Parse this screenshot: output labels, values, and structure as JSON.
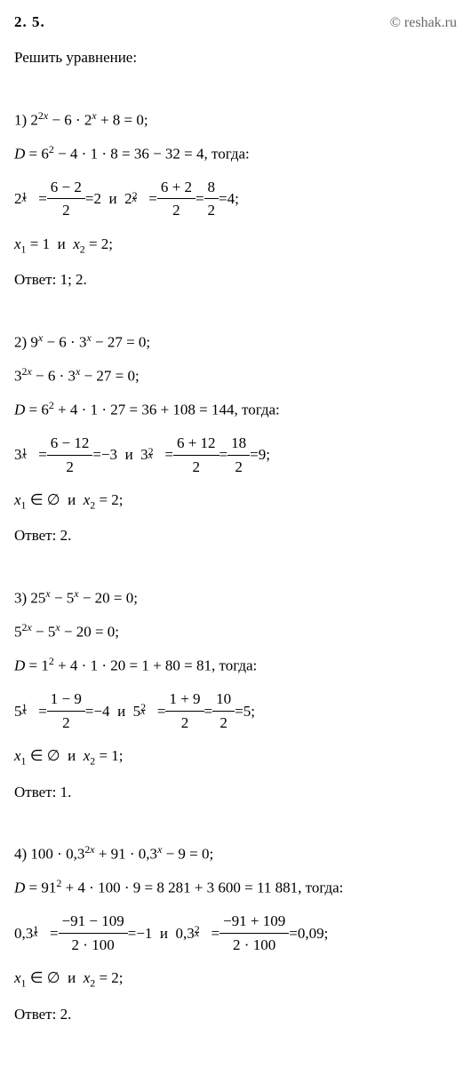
{
  "header": {
    "problem_number": "2. 5.",
    "copyright": "© reshak.ru"
  },
  "task_title": "Решить уравнение:",
  "subproblems": [
    {
      "eq": "1) 2^{2x} − 6 · 2^{x} + 8 = 0;",
      "disc": "D = 6^{2} − 4 · 1 · 8 = 36 − 32 = 4, тогда:",
      "roots_base": "2",
      "root1_num": "6 − 2",
      "root1_den": "2",
      "root1_val": "2",
      "root2_num": "6 + 2",
      "root2_den": "2",
      "root2_mid": "8",
      "root2_midden": "2",
      "root2_val": "4",
      "x_line": "x₁ = 1  и  x₂ = 2;",
      "answer": "Ответ:  1;  2."
    },
    {
      "eq": "2) 9^{x} − 6 · 3^{x} − 27 = 0;",
      "rewrite": "3^{2x} − 6 · 3^{x} − 27 = 0;",
      "disc": "D = 6^{2} + 4 · 1 · 27 = 36 + 108 = 144, тогда:",
      "roots_base": "3",
      "root1_num": "6 − 12",
      "root1_den": "2",
      "root1_val": "−3",
      "root2_num": "6 + 12",
      "root2_den": "2",
      "root2_mid": "18",
      "root2_midden": "2",
      "root2_val": "9",
      "x_line": "x₁ ∈ ∅  и  x₂ = 2;",
      "answer": "Ответ:  2."
    },
    {
      "eq": "3) 25^{x} − 5^{x} − 20 = 0;",
      "rewrite": "5^{2x} − 5^{x} − 20 = 0;",
      "disc": "D = 1^{2} + 4 · 1 · 20 = 1 + 80 = 81, тогда:",
      "roots_base": "5",
      "root1_num": "1 − 9",
      "root1_den": "2",
      "root1_val": "−4",
      "root2_num": "1 + 9",
      "root2_den": "2",
      "root2_mid": "10",
      "root2_midden": "2",
      "root2_val": "5",
      "x_line": "x₁ ∈ ∅  и  x₂ = 1;",
      "answer": "Ответ:  1."
    },
    {
      "eq": "4) 100 · 0,3^{2x} + 91 · 0,3^{x} − 9 = 0;",
      "disc": "D = 91^{2} + 4 · 100 · 9 = 8 281 + 3 600 = 11 881, тогда:",
      "roots_base": "0,3",
      "root1_num": "−91 − 109",
      "root1_den": "2 · 100",
      "root1_val": "−1",
      "root2_num": "−91 + 109",
      "root2_den": "2 · 100",
      "root2_val": "0,09",
      "x_line": "x₁ ∈ ∅  и  x₂ = 2;",
      "answer": "Ответ:  2."
    }
  ]
}
